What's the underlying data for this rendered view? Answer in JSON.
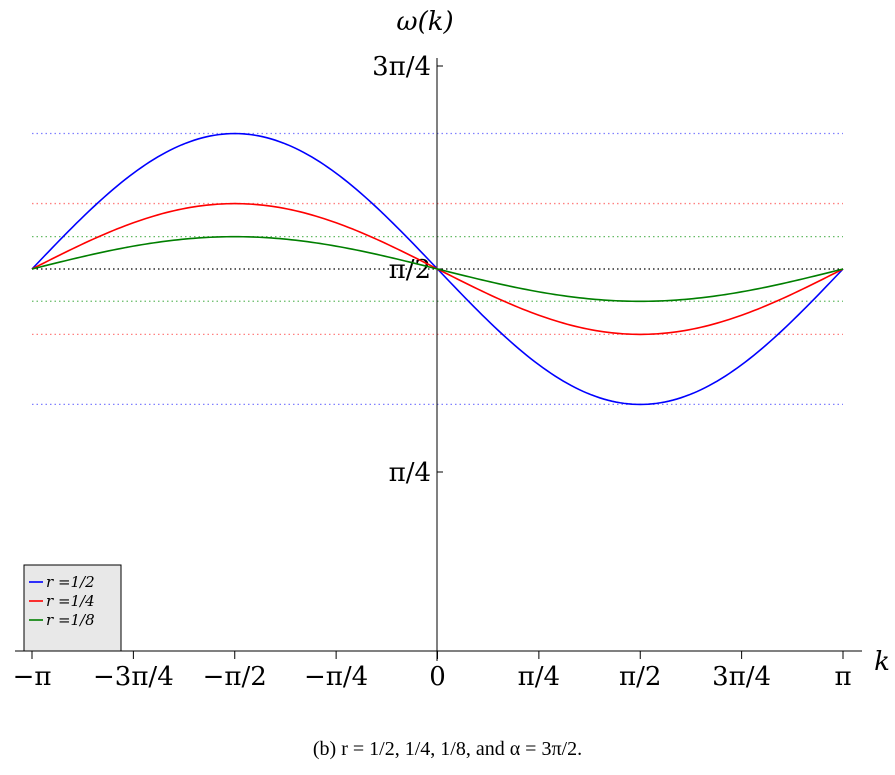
{
  "chart_data": {
    "type": "line",
    "xlabel": "k",
    "ylabel": "ω(k)",
    "xlim": [
      -3.14159,
      3.14159
    ],
    "ylim": [
      0.0,
      2.356
    ],
    "x_ticks": [
      {
        "value": -3.14159,
        "label": "−π"
      },
      {
        "value": -2.35619,
        "label": "−3π/4"
      },
      {
        "value": -1.5708,
        "label": "−π/2"
      },
      {
        "value": -0.7854,
        "label": "−π/4"
      },
      {
        "value": 0,
        "label": "0"
      },
      {
        "value": 0.7854,
        "label": "π/4"
      },
      {
        "value": 1.5708,
        "label": "π/2"
      },
      {
        "value": 2.35619,
        "label": "3π/4"
      },
      {
        "value": 3.14159,
        "label": "π"
      }
    ],
    "y_ticks": [
      {
        "value": 0.7854,
        "label": "π/4"
      },
      {
        "value": 1.5708,
        "label": "π/2"
      },
      {
        "value": 2.35619,
        "label": "3π/4"
      }
    ],
    "series": [
      {
        "name": "r =1/2",
        "color": "#0000ff",
        "amplitude": 0.524
      },
      {
        "name": "r =1/4",
        "color": "#ff0000",
        "amplitude": 0.253
      },
      {
        "name": "r =1/8",
        "color": "#007f00",
        "amplitude": 0.125
      }
    ],
    "reference_lines": [
      {
        "value": 1.5708,
        "color": "#000000"
      },
      {
        "value": 2.095,
        "color": "#8080ff"
      },
      {
        "value": 1.047,
        "color": "#8080ff"
      },
      {
        "value": 1.824,
        "color": "#ff8080"
      },
      {
        "value": 1.318,
        "color": "#ff8080"
      },
      {
        "value": 1.696,
        "color": "#66bb66"
      },
      {
        "value": 1.446,
        "color": "#66bb66"
      }
    ],
    "legend": {
      "position": "bottom-left"
    }
  },
  "caption": "(b) r = 1/2, 1/4, 1/8, and α = 3π/2."
}
